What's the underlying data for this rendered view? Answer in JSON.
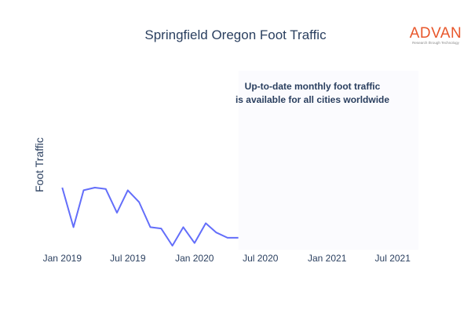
{
  "logo": {
    "name": "ADVAN",
    "tagline": "Research through Technology"
  },
  "annotation": {
    "line1": "Up-to-date monthly foot traffic",
    "line2": "is available for all cities worldwide"
  },
  "colors": {
    "line": "#636efa",
    "text": "#2a3f5f",
    "shade": "#fbfbfe",
    "logo": "#e8572b"
  },
  "chart_data": {
    "type": "line",
    "title": "Springfield Oregon Foot Traffic",
    "xlabel": "",
    "ylabel": "Foot Traffic",
    "xlim": [
      "2018-12-01",
      "2021-09-10"
    ],
    "ylim": [
      0,
      100
    ],
    "x_ticks": [
      "Jan 2019",
      "Jul 2019",
      "Jan 2020",
      "Jul 2020",
      "Jan 2021",
      "Jul 2021"
    ],
    "x_tick_dates": [
      "2019-01-01",
      "2019-07-01",
      "2020-01-01",
      "2020-07-01",
      "2021-01-01",
      "2021-07-01"
    ],
    "y_ticks_visible": false,
    "grid": false,
    "shaded_region": [
      "2020-05-01",
      "2021-09-10"
    ],
    "series": [
      {
        "x": [
          "2019-01-01",
          "2019-02-01",
          "2019-03-01",
          "2019-04-01",
          "2019-05-01",
          "2019-06-01",
          "2019-07-01",
          "2019-08-01",
          "2019-09-01",
          "2019-10-01",
          "2019-11-01",
          "2019-12-01",
          "2020-01-01",
          "2020-02-01",
          "2020-03-01",
          "2020-04-01",
          "2020-05-01"
        ],
        "y": [
          47,
          17,
          45,
          47,
          46,
          28,
          45,
          36,
          17,
          16,
          3,
          17,
          5,
          20,
          13,
          9,
          9
        ]
      }
    ]
  }
}
